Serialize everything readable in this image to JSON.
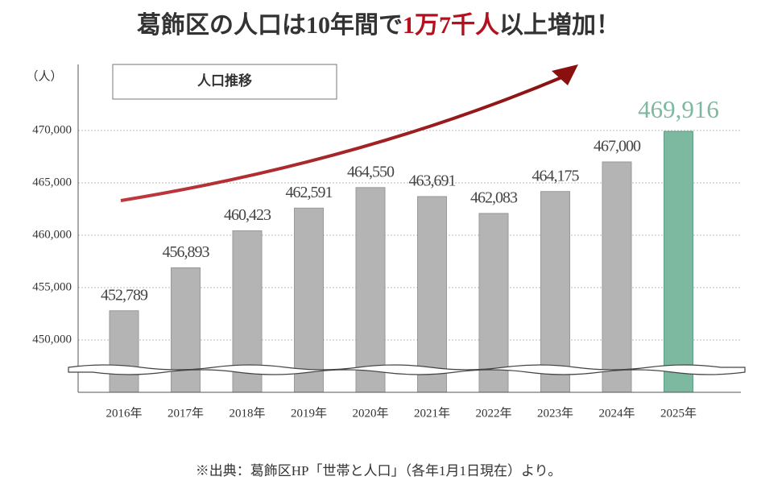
{
  "chart_data": {
    "type": "bar",
    "title_segments": [
      "葛飾区の人口は10年間で",
      "1万7千人",
      "以上増加！"
    ],
    "y_unit": "（人）",
    "legend_label": "人口推移",
    "note": "※出典：葛飾区HP「世帯と人口」（各年1月1日現在）より。",
    "categories": [
      "2016年",
      "2017年",
      "2018年",
      "2019年",
      "2020年",
      "2021年",
      "2022年",
      "2023年",
      "2024年",
      "2025年"
    ],
    "values": [
      452789,
      456893,
      460423,
      462591,
      464550,
      463691,
      462083,
      464175,
      467000,
      469916
    ],
    "value_labels": [
      "452,789",
      "456,893",
      "460,423",
      "462,591",
      "464,550",
      "463,691",
      "462,083",
      "464,175",
      "467,000",
      "469,916"
    ],
    "colors": [
      "#b3b4b3",
      "#b3b4b3",
      "#b3b4b3",
      "#b3b4b3",
      "#b3b4b3",
      "#b3b4b3",
      "#b3b4b3",
      "#b3b4b3",
      "#b3b4b3",
      "#7db9a1"
    ],
    "ylim": [
      445000,
      475000
    ],
    "yticks": [
      {
        "value": 450000,
        "label": "450,000"
      },
      {
        "value": 455000,
        "label": "455,000"
      },
      {
        "value": 460000,
        "label": "460,000"
      },
      {
        "value": 465000,
        "label": "465,000"
      },
      {
        "value": 470000,
        "label": "470,000"
      }
    ],
    "grid": true
  }
}
